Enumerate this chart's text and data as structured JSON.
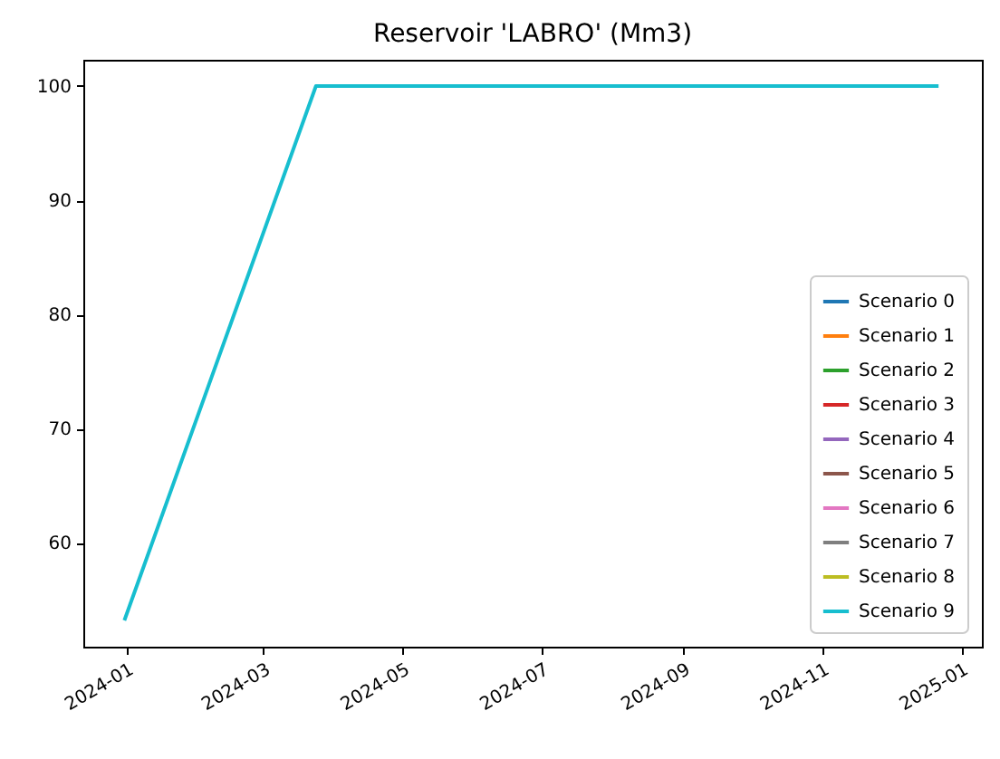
{
  "chart_data": {
    "type": "line",
    "title": "Reservoir 'LABRO' (Mm3)",
    "x": [
      "2023-12-31",
      "2024-03-24",
      "2024-12-22"
    ],
    "series": [
      {
        "name": "Scenario 0",
        "color": "#1f77b4",
        "values": [
          null,
          null,
          null
        ]
      },
      {
        "name": "Scenario 1",
        "color": "#ff7f0e",
        "values": [
          null,
          null,
          null
        ]
      },
      {
        "name": "Scenario 2",
        "color": "#2ca02c",
        "values": [
          null,
          null,
          null
        ]
      },
      {
        "name": "Scenario 3",
        "color": "#d62728",
        "values": [
          null,
          null,
          null
        ]
      },
      {
        "name": "Scenario 4",
        "color": "#9467bd",
        "values": [
          null,
          null,
          null
        ]
      },
      {
        "name": "Scenario 5",
        "color": "#8c564b",
        "values": [
          null,
          null,
          null
        ]
      },
      {
        "name": "Scenario 6",
        "color": "#e377c2",
        "values": [
          null,
          null,
          null
        ]
      },
      {
        "name": "Scenario 7",
        "color": "#7f7f7f",
        "values": [
          null,
          null,
          null
        ]
      },
      {
        "name": "Scenario 8",
        "color": "#bcbd22",
        "values": [
          null,
          null,
          null
        ]
      },
      {
        "name": "Scenario 9",
        "color": "#17becf",
        "values": [
          53.2,
          100,
          100
        ]
      }
    ],
    "xlim": [
      "2023-12-13",
      "2025-01-10"
    ],
    "xticks": [
      "2024-01",
      "2024-03",
      "2024-05",
      "2024-07",
      "2024-09",
      "2024-11",
      "2025-01"
    ],
    "ylim": [
      50.9,
      102.3
    ],
    "yticks": [
      60,
      70,
      80,
      90,
      100
    ],
    "grid": false,
    "legend": "bottom right",
    "marker": "none",
    "line_style": "solid"
  }
}
